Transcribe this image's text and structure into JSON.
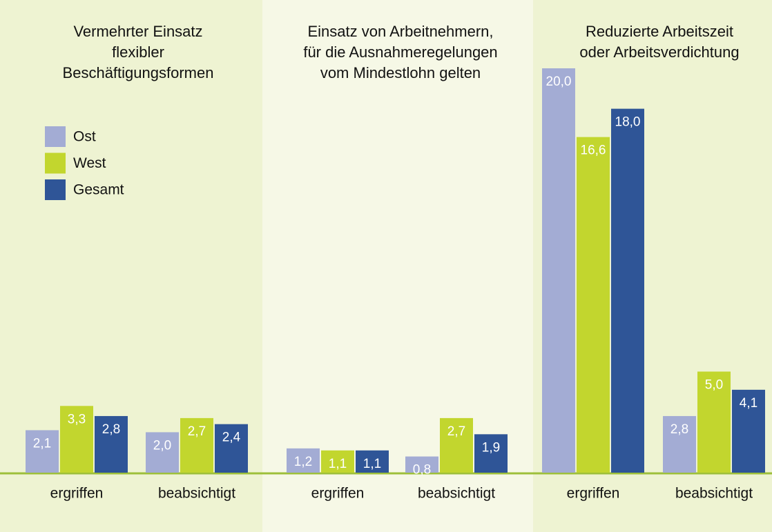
{
  "chart_data": {
    "type": "bar",
    "series": [
      {
        "name": "Ost",
        "color": "#a3acd4"
      },
      {
        "name": "West",
        "color": "#c2d62e"
      },
      {
        "name": "Gesamt",
        "color": "#2f5597"
      }
    ],
    "panels": [
      {
        "title": [
          "Vermehrter Einsatz",
          "flexibler",
          "Beschäftigungsformen"
        ],
        "categories": [
          "ergriffen",
          "beabsichtigt"
        ],
        "series": [
          {
            "values": [
              2.1,
              2.0
            ],
            "value_labels": [
              "2,1",
              "2,0"
            ]
          },
          {
            "values": [
              3.3,
              2.7
            ],
            "value_labels": [
              "3,3",
              "2,7"
            ]
          },
          {
            "values": [
              2.8,
              2.4
            ],
            "value_labels": [
              "2,8",
              "2,4"
            ]
          }
        ]
      },
      {
        "title": [
          "Einsatz von Arbeitnehmern,",
          "für die Ausnahmeregelungen",
          "vom Mindestlohn gelten"
        ],
        "categories": [
          "ergriffen",
          "beabsichtigt"
        ],
        "series": [
          {
            "values": [
              1.2,
              0.8
            ],
            "value_labels": [
              "1,2",
              "0,8"
            ]
          },
          {
            "values": [
              1.1,
              2.7
            ],
            "value_labels": [
              "1,1",
              "2,7"
            ]
          },
          {
            "values": [
              1.1,
              1.9
            ],
            "value_labels": [
              "1,1",
              "1,9"
            ]
          }
        ]
      },
      {
        "title": [
          "Reduzierte Arbeitszeit",
          "oder Arbeitsverdichtung"
        ],
        "categories": [
          "ergriffen",
          "beabsichtigt"
        ],
        "series": [
          {
            "values": [
              20.0,
              2.8
            ],
            "value_labels": [
              "20,0",
              "2,8"
            ]
          },
          {
            "values": [
              16.6,
              5.0
            ],
            "value_labels": [
              "16,6",
              "5,0"
            ]
          },
          {
            "values": [
              18.0,
              4.1
            ],
            "value_labels": [
              "18,0",
              "4,1"
            ]
          }
        ]
      }
    ]
  }
}
